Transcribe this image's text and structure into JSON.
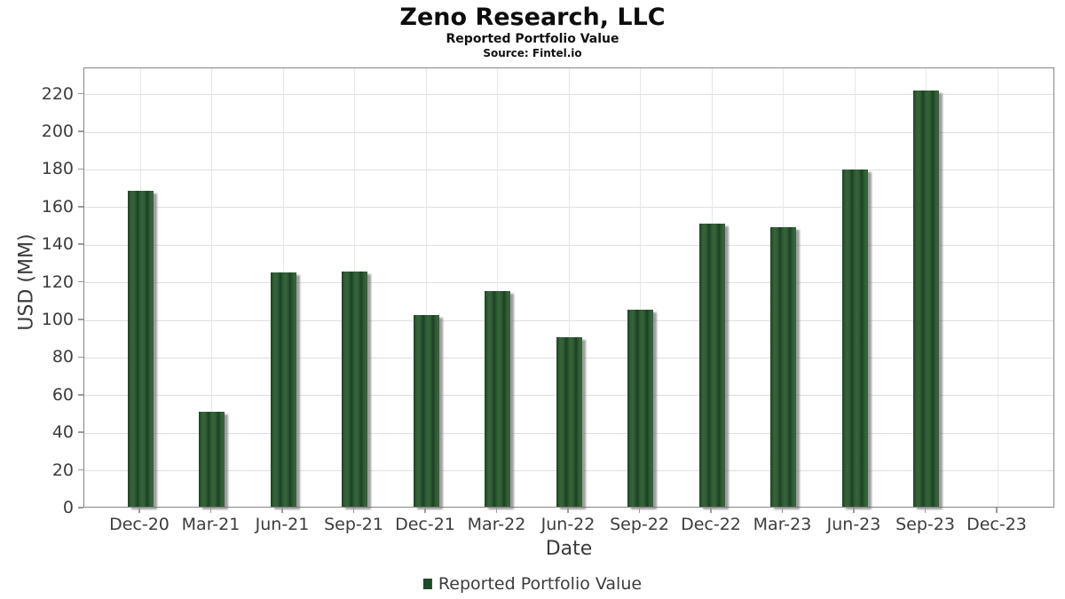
{
  "header": {
    "title": "Zeno Research, LLC",
    "subtitle": "Reported Portfolio Value",
    "source": "Source: Fintel.io"
  },
  "chart_data": {
    "type": "bar",
    "title": "Zeno Research, LLC",
    "subtitle": "Reported Portfolio Value",
    "source_note": "Source: Fintel.io",
    "xlabel": "Date",
    "ylabel": "USD (MM)",
    "categories": [
      "Dec-20",
      "Mar-21",
      "Jun-21",
      "Sep-21",
      "Dec-21",
      "Mar-22",
      "Jun-22",
      "Sep-22",
      "Dec-22",
      "Mar-23",
      "Jun-23",
      "Sep-23",
      "Dec-23"
    ],
    "series": [
      {
        "name": "Reported Portfolio Value",
        "values": [
          169,
          51.5,
          125.5,
          126,
          103,
          115.5,
          91,
          105.5,
          151.5,
          149.5,
          180,
          222,
          null
        ]
      }
    ],
    "yticks": [
      0,
      20,
      40,
      60,
      80,
      100,
      120,
      140,
      160,
      180,
      200,
      220
    ],
    "ylim": [
      0,
      234
    ],
    "grid": true,
    "legend_position": "bottom",
    "colors": {
      "bar": "#2d5a33",
      "bar_stripe_dark": "#1d4023",
      "bar_stripe_light": "#376439",
      "legend_marker": "#1e4a26",
      "gridline": "#dfdfdf",
      "axis_border": "#858585",
      "tick_text": "#3c3c3c",
      "title_text": "#0d0d0d"
    }
  }
}
